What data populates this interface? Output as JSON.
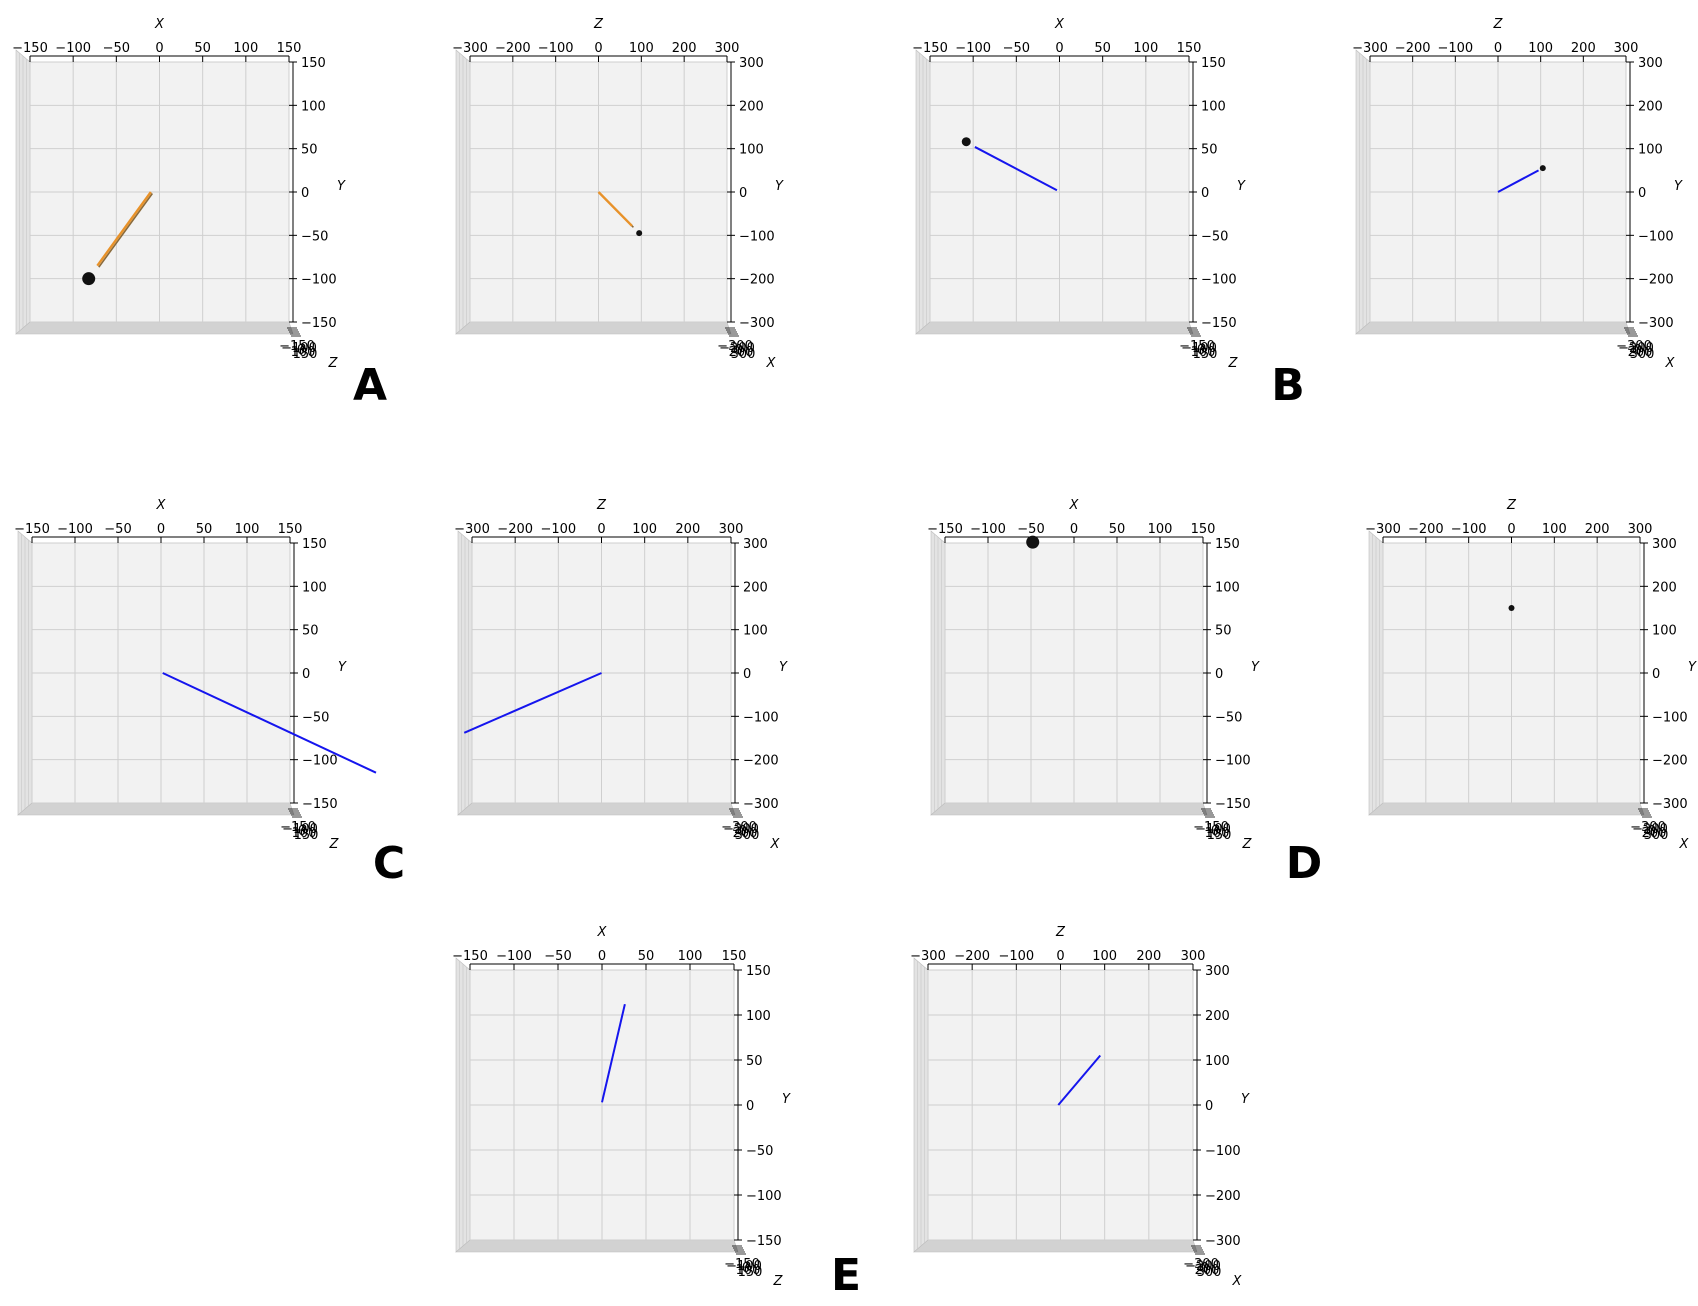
{
  "colors": {
    "pane": "#f2f2f2",
    "pane_side": "#e3e3e3",
    "pane_floor": "#d2d2d2",
    "grid": "#cfcfcf",
    "blue_line": "#1515ee",
    "orange_line": "#e8922a",
    "orange_shadow": "#8a6a3a",
    "dot": "#111111"
  },
  "chart_data": [
    {
      "type": "line",
      "option": "A",
      "view": "front",
      "xlabel": "X",
      "ylabel": "Y",
      "zlabel": "Z",
      "xlim": [
        -150,
        150
      ],
      "ylim": [
        -150,
        150
      ],
      "x_ticks": [
        "−150",
        "−100",
        "−50",
        "0",
        "50",
        "100",
        "150"
      ],
      "y_ticks": [
        "150",
        "100",
        "50",
        "0",
        "−50",
        "−100",
        "−150"
      ],
      "depth_ticks": [
        "−150",
        "−100",
        "0",
        "100",
        "150"
      ],
      "segment": {
        "start": [
          -10,
          0
        ],
        "end": [
          -72,
          -85
        ],
        "color": "orange"
      },
      "marker": {
        "at": [
          -82,
          -100
        ],
        "size": "large"
      }
    },
    {
      "type": "line",
      "option": "A",
      "view": "side",
      "xlabel": "Z",
      "ylabel": "Y",
      "zlabel": "X",
      "xlim": [
        -300,
        300
      ],
      "ylim": [
        -300,
        300
      ],
      "x_ticks": [
        "−300",
        "−200",
        "−100",
        "0",
        "100",
        "200",
        "300"
      ],
      "y_ticks": [
        "300",
        "200",
        "100",
        "0",
        "−100",
        "−200",
        "−300"
      ],
      "depth_ticks": [
        "−300",
        "−200",
        "0",
        "200",
        "300"
      ],
      "segment": {
        "start": [
          0,
          0
        ],
        "end": [
          78,
          -78
        ],
        "color": "orange"
      },
      "marker": {
        "at": [
          95,
          -95
        ],
        "size": "small"
      }
    },
    {
      "type": "line",
      "option": "B",
      "view": "front",
      "xlabel": "X",
      "ylabel": "Y",
      "zlabel": "Z",
      "xlim": [
        -150,
        150
      ],
      "ylim": [
        -150,
        150
      ],
      "x_ticks": [
        "−150",
        "−100",
        "−50",
        "0",
        "50",
        "100",
        "150"
      ],
      "y_ticks": [
        "150",
        "100",
        "50",
        "0",
        "−50",
        "−100",
        "−150"
      ],
      "depth_ticks": [
        "−150",
        "−100",
        "0",
        "100",
        "150"
      ],
      "segment": {
        "start": [
          -3,
          2
        ],
        "end": [
          -98,
          52
        ],
        "color": "blue"
      },
      "marker": {
        "at": [
          -108,
          58
        ],
        "size": "medium"
      }
    },
    {
      "type": "line",
      "option": "B",
      "view": "side",
      "xlabel": "Z",
      "ylabel": "Y",
      "zlabel": "X",
      "xlim": [
        -300,
        300
      ],
      "ylim": [
        -300,
        300
      ],
      "x_ticks": [
        "−300",
        "−200",
        "−100",
        "0",
        "100",
        "200",
        "300"
      ],
      "y_ticks": [
        "300",
        "200",
        "100",
        "0",
        "−100",
        "−200",
        "−300"
      ],
      "depth_ticks": [
        "−300",
        "−200",
        "0",
        "200",
        "300"
      ],
      "segment": {
        "start": [
          0,
          0
        ],
        "end": [
          95,
          50
        ],
        "color": "blue"
      },
      "marker": {
        "at": [
          105,
          55
        ],
        "size": "small"
      }
    },
    {
      "type": "line",
      "option": "C",
      "view": "front",
      "xlabel": "X",
      "ylabel": "Y",
      "zlabel": "Z",
      "xlim": [
        -150,
        150
      ],
      "ylim": [
        -150,
        150
      ],
      "x_ticks": [
        "−150",
        "−100",
        "−50",
        "0",
        "50",
        "100",
        "150"
      ],
      "y_ticks": [
        "150",
        "100",
        "50",
        "0",
        "−50",
        "−100",
        "−150"
      ],
      "depth_ticks": [
        "−150",
        "−100",
        "0",
        "100",
        "150"
      ],
      "segment": {
        "start": [
          2,
          0
        ],
        "end": [
          250,
          -115
        ],
        "color": "blue"
      }
    },
    {
      "type": "line",
      "option": "C",
      "view": "side",
      "xlabel": "Z",
      "ylabel": "Y",
      "zlabel": "X",
      "xlim": [
        -300,
        300
      ],
      "ylim": [
        -300,
        300
      ],
      "x_ticks": [
        "−300",
        "−200",
        "−100",
        "0",
        "100",
        "200",
        "300"
      ],
      "y_ticks": [
        "300",
        "200",
        "100",
        "0",
        "−100",
        "−200",
        "−300"
      ],
      "depth_ticks": [
        "−300",
        "−200",
        "0",
        "200",
        "300"
      ],
      "segment": {
        "start": [
          0,
          0
        ],
        "end": [
          -318,
          -138
        ],
        "color": "blue"
      }
    },
    {
      "type": "scatter",
      "option": "D",
      "view": "front",
      "xlabel": "X",
      "ylabel": "Y",
      "zlabel": "Z",
      "xlim": [
        -150,
        150
      ],
      "ylim": [
        -150,
        150
      ],
      "x_ticks": [
        "−150",
        "−100",
        "−50",
        "0",
        "50",
        "100",
        "150"
      ],
      "y_ticks": [
        "150",
        "100",
        "50",
        "0",
        "−50",
        "−100",
        "−150"
      ],
      "depth_ticks": [
        "−150",
        "−100",
        "0",
        "100",
        "150"
      ],
      "marker": {
        "at": [
          -48,
          151
        ],
        "size": "large"
      }
    },
    {
      "type": "scatter",
      "option": "D",
      "view": "side",
      "xlabel": "Z",
      "ylabel": "Y",
      "zlabel": "X",
      "xlim": [
        -300,
        300
      ],
      "ylim": [
        -300,
        300
      ],
      "x_ticks": [
        "−300",
        "−200",
        "−100",
        "0",
        "100",
        "200",
        "300"
      ],
      "y_ticks": [
        "300",
        "200",
        "100",
        "0",
        "−100",
        "−200",
        "−300"
      ],
      "depth_ticks": [
        "−300",
        "−200",
        "0",
        "200",
        "300"
      ],
      "marker": {
        "at": [
          0,
          150
        ],
        "size": "small"
      }
    },
    {
      "type": "line",
      "option": "E",
      "view": "front",
      "xlabel": "X",
      "ylabel": "Y",
      "zlabel": "Z",
      "xlim": [
        -150,
        150
      ],
      "ylim": [
        -150,
        150
      ],
      "x_ticks": [
        "−150",
        "−100",
        "−50",
        "0",
        "50",
        "100",
        "150"
      ],
      "y_ticks": [
        "150",
        "100",
        "50",
        "0",
        "−50",
        "−100",
        "−150"
      ],
      "depth_ticks": [
        "−150",
        "−100",
        "0",
        "100",
        "150"
      ],
      "segment": {
        "start": [
          0,
          3
        ],
        "end": [
          26,
          112
        ],
        "color": "blue"
      }
    },
    {
      "type": "line",
      "option": "E",
      "view": "side",
      "xlabel": "Z",
      "ylabel": "Y",
      "zlabel": "X",
      "xlim": [
        -300,
        300
      ],
      "ylim": [
        -300,
        300
      ],
      "x_ticks": [
        "−300",
        "−200",
        "−100",
        "0",
        "100",
        "200",
        "300"
      ],
      "y_ticks": [
        "300",
        "200",
        "100",
        "0",
        "−100",
        "−200",
        "−300"
      ],
      "depth_ticks": [
        "−300",
        "−200",
        "0",
        "200",
        "300"
      ],
      "segment": {
        "start": [
          -5,
          0
        ],
        "end": [
          90,
          110
        ],
        "color": "blue"
      }
    }
  ],
  "option_labels": [
    "A",
    "B",
    "C",
    "D",
    "E"
  ]
}
